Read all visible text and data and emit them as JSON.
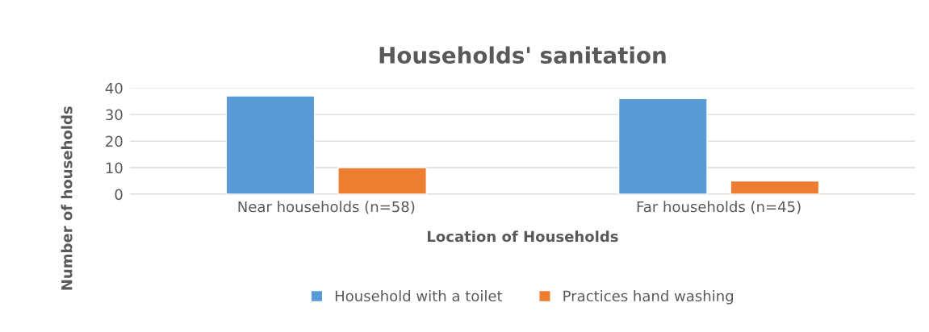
{
  "chart_data": {
    "type": "bar",
    "title": "Households' sanitation",
    "xlabel": "Location of Households",
    "ylabel": "Number of households",
    "categories": [
      "Near households (n=58)",
      "Far households (n=45)"
    ],
    "series": [
      {
        "name": "Household with a toilet",
        "color": "#5b9bd5",
        "values": [
          37,
          36
        ]
      },
      {
        "name": "Practices hand washing",
        "color": "#ed7d31",
        "values": [
          10,
          5
        ]
      }
    ],
    "ylim": [
      0,
      40
    ],
    "yticks": [
      0,
      10,
      20,
      30,
      40
    ],
    "grid": "y",
    "legend": "bottom"
  }
}
